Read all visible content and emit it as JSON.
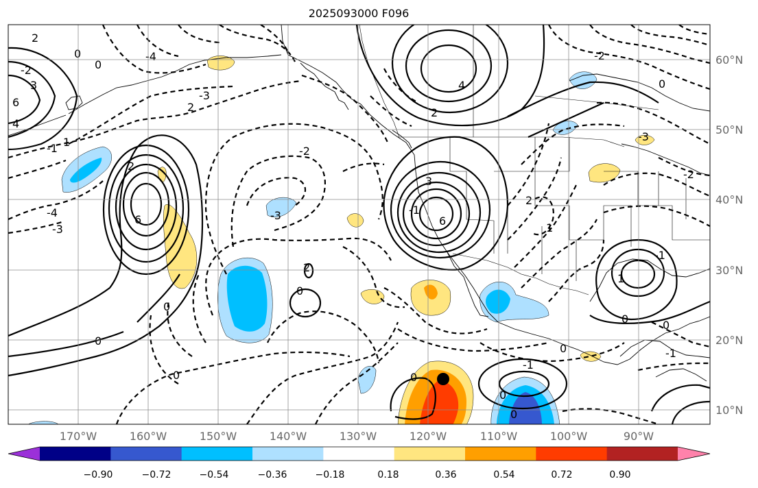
{
  "title": "2025093000 F096",
  "map": {
    "lon_ticks": [
      "170°W",
      "160°W",
      "150°W",
      "140°W",
      "130°W",
      "120°W",
      "110°W",
      "100°W",
      "90°W"
    ],
    "lat_ticks": [
      "60°N",
      "50°N",
      "40°N",
      "30°N",
      "20°N",
      "10°N"
    ],
    "gridlines": true,
    "contour_labels": [
      "2",
      "0",
      "3",
      "6",
      "4",
      "-2",
      "-3",
      "2",
      "0",
      "-1",
      "1",
      "6",
      "2",
      "-4",
      "-3",
      "0",
      "0",
      "0",
      "-4",
      "0",
      "2",
      "-3",
      "-2",
      "3",
      "-1",
      "4",
      "6",
      "2",
      "-2",
      "0",
      "-1",
      "1",
      "0",
      "0",
      "-1",
      "0",
      "0",
      "-1",
      "2",
      "1",
      "-2",
      "-3",
      "0",
      "0"
    ],
    "storm_marker": "filled-black-dot"
  },
  "colorbar": {
    "tick_labels": [
      "−0.90",
      "−0.72",
      "−0.54",
      "−0.36",
      "−0.18",
      "0.18",
      "0.36",
      "0.54",
      "0.72",
      "0.90"
    ],
    "colors": [
      "#9b30d9",
      "#000087",
      "#3658cf",
      "#00bfff",
      "#aee0ff",
      "#ffffff",
      "#ffe680",
      "#ff9f00",
      "#ff3c00",
      "#b22222",
      "#ff82ab"
    ]
  }
}
